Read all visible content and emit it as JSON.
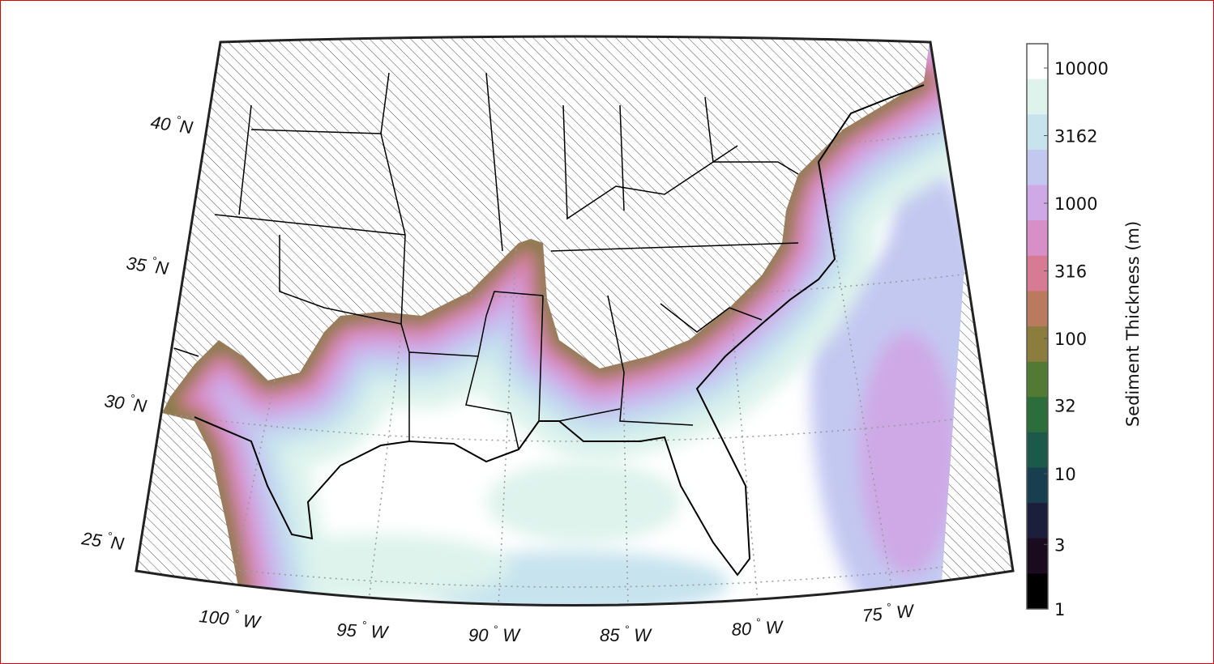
{
  "map": {
    "latitude_labels": [
      {
        "deg": "40",
        "hemi": "N"
      },
      {
        "deg": "35",
        "hemi": "N"
      },
      {
        "deg": "30",
        "hemi": "N"
      },
      {
        "deg": "25",
        "hemi": "N"
      }
    ],
    "longitude_labels": [
      {
        "deg": "100",
        "hemi": "W"
      },
      {
        "deg": "95",
        "hemi": "W"
      },
      {
        "deg": "90",
        "hemi": "W"
      },
      {
        "deg": "85",
        "hemi": "W"
      },
      {
        "deg": "80",
        "hemi": "W"
      },
      {
        "deg": "75",
        "hemi": "W"
      }
    ],
    "degree_symbol": "°",
    "land_fill": "hatched",
    "coastline_color": "#000000"
  },
  "colorbar": {
    "title": "Sediment Thickness (m)",
    "scale": "log",
    "range": [
      1,
      10000
    ],
    "tick_labels": [
      "10000",
      "3162",
      "1000",
      "316",
      "100",
      "32",
      "10",
      "3",
      "1"
    ],
    "band_colors": [
      "#ffffff",
      "#ddf3ec",
      "#c6e3ee",
      "#c3c8f1",
      "#cfa8e6",
      "#d78fc8",
      "#d77a93",
      "#b97a60",
      "#8c7d3f",
      "#537a35",
      "#2b6e3b",
      "#1b5a4a",
      "#193e4f",
      "#1b1f3c",
      "#1a0c1e",
      "#000000"
    ]
  }
}
